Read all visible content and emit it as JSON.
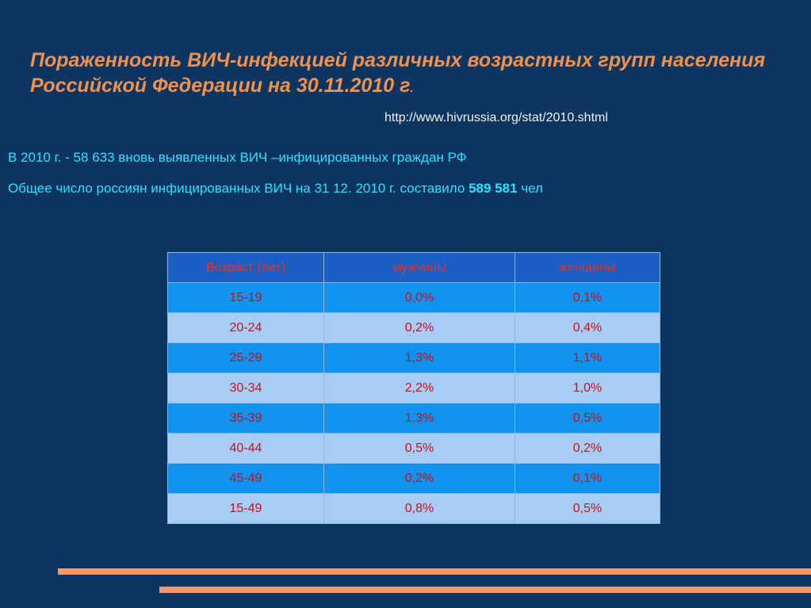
{
  "slide": {
    "title_main": "Пораженность ВИЧ-инфекцией различных возрастных групп населения Российской Федерации на 30.11.2010 г",
    "title_tail": ".",
    "source_url": "http://www.hivrussia.org/stat/2010.shtml",
    "info_line_1": "В 2010 г. - 58 633  вновь выявленных ВИЧ –инфицированных граждан РФ",
    "info_line_2_prefix": "Общее число россиян инфицированных ВИЧ на 31 12. 2010 г. составило ",
    "info_line_2_number": "589 581",
    "info_line_2_suffix": " чел"
  },
  "table": {
    "headers": {
      "age": "Возраст (лет)",
      "men": "мужчины",
      "women": "женщины"
    },
    "rows": [
      {
        "age": "15-19",
        "men": "0,0%",
        "women": "0,1%"
      },
      {
        "age": "20-24",
        "men": "0,2%",
        "women": "0,4%"
      },
      {
        "age": "25-29",
        "men": "1,3%",
        "women": "1,1%"
      },
      {
        "age": "30-34",
        "men": "2,2%",
        "women": "1,0%"
      },
      {
        "age": "35-39",
        "men": "1,3%",
        "women": "0,5%"
      },
      {
        "age": "40-44",
        "men": "0,5%",
        "women": "0,2%"
      },
      {
        "age": "45-49",
        "men": "0,2%",
        "women": "0,1%"
      },
      {
        "age": "15-49",
        "men": "0,8%",
        "women": "0,5%"
      }
    ]
  },
  "colors": {
    "background": "#0d3560",
    "title": "#f0914e",
    "info_text": "#2de0ff",
    "header_fill": "#1c5fc4",
    "row_odd_fill": "#0f93ee",
    "row_even_fill": "#a7cdf6",
    "cell_text": "#c8101a",
    "accent_lines": "#f6996a"
  }
}
